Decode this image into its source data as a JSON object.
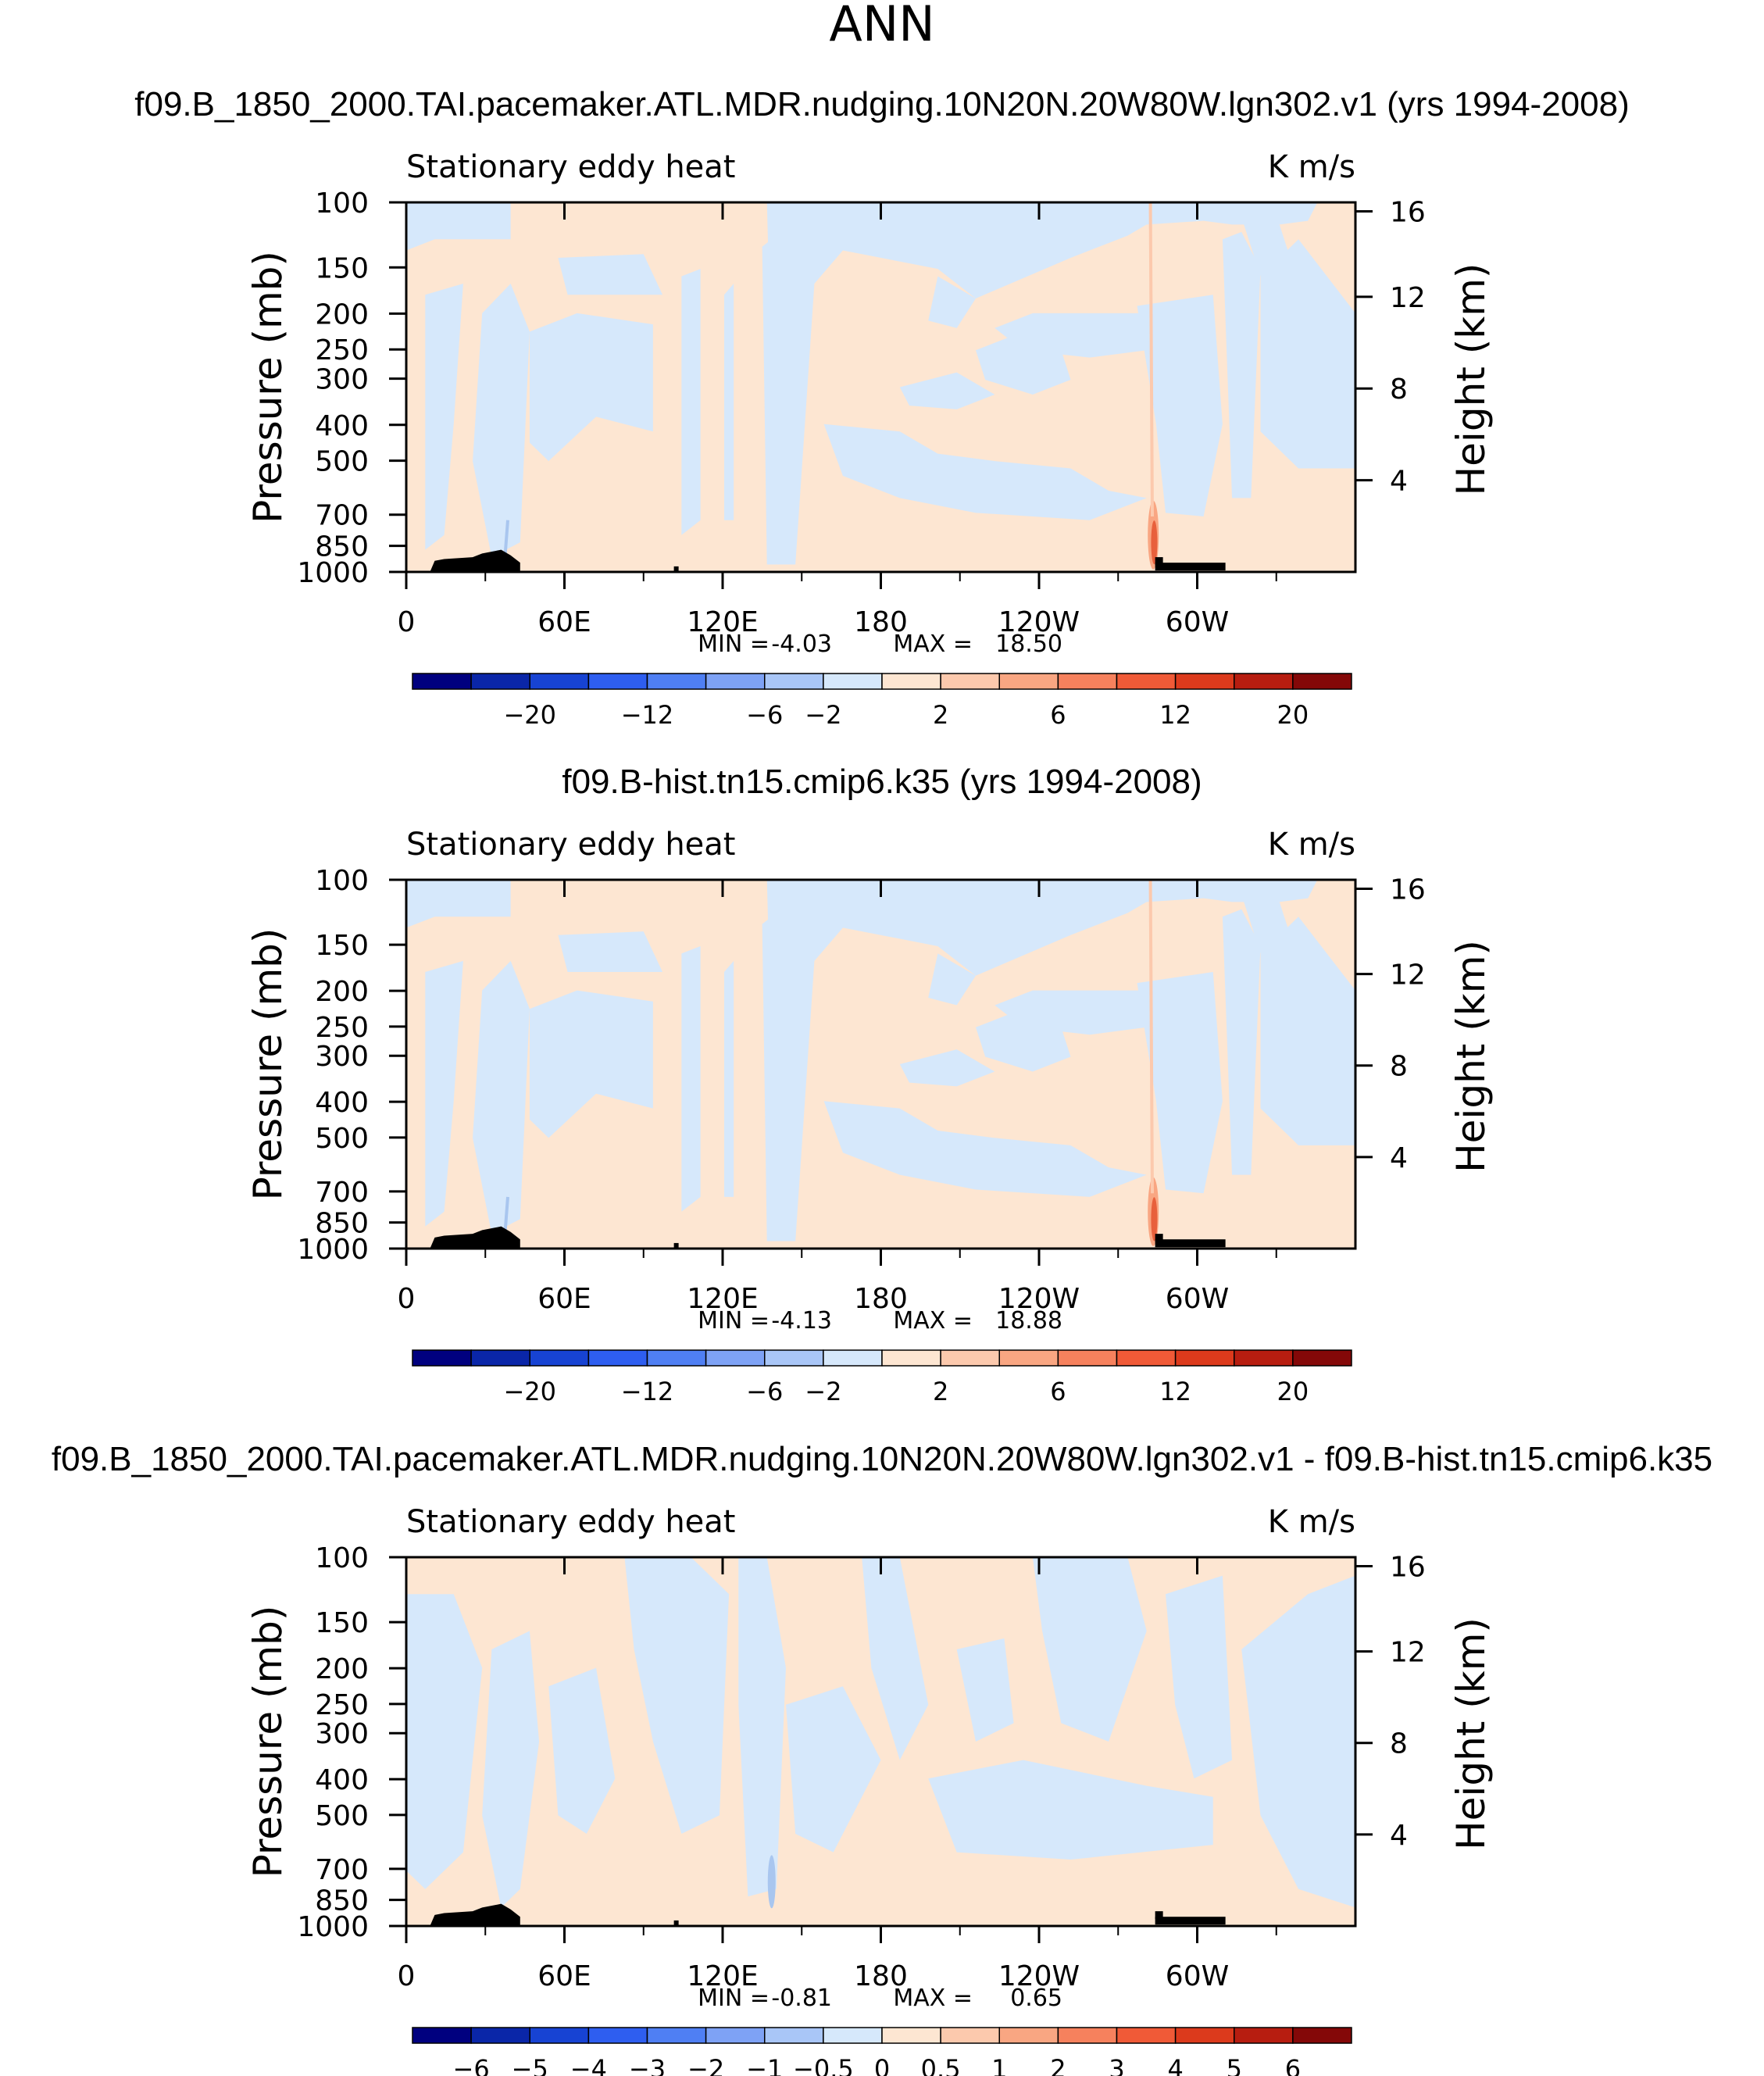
{
  "figure_title": "ANN",
  "colors": {
    "axis": "#000000",
    "topography": "#000000",
    "blue_field": "#d6e8fb",
    "tan_field": "#fde6d2",
    "strong_positive": "#e8603c",
    "contour_minor": "#a9c6ef"
  },
  "chart_data": [
    {
      "type": "heatmap",
      "title": "f09.B_1850_2000.TAI.pacemaker.ATL.MDR.nudging.10N20N.20W80W.lgn302.v1 (yrs 1994-2008)",
      "left_label": "Stationary eddy heat",
      "right_label": "K m/s",
      "xlabel": "",
      "ylabel": "Pressure (mb)",
      "y2label": "Height (km)",
      "x_ticks": [
        "0",
        "60E",
        "120E",
        "180",
        "120W",
        "60W"
      ],
      "x_tick_values": [
        0,
        60,
        120,
        180,
        240,
        300
      ],
      "xlim": [
        0,
        360
      ],
      "y_ticks": [
        100,
        150,
        200,
        250,
        300,
        400,
        500,
        700,
        850,
        1000
      ],
      "ylim": [
        1000,
        100
      ],
      "y2_ticks": [
        4,
        8,
        12,
        16
      ],
      "min_label": "MIN =",
      "min_value": "-4.03",
      "max_label": "MAX =",
      "max_value": "18.50",
      "colorbar_labels": [
        "−20",
        "−12",
        "−6",
        "−2",
        "2",
        "6",
        "12",
        "20"
      ],
      "colorbar_colors": [
        "#00007f",
        "#0a26a8",
        "#1743d3",
        "#2e5ef0",
        "#4f7ff3",
        "#7ea2f5",
        "#a9c6f7",
        "#d6e8fb",
        "#fde6d2",
        "#fcc9ad",
        "#f9a682",
        "#f6815d",
        "#f05a37",
        "#dc3a1c",
        "#b71d10",
        "#840808"
      ]
    },
    {
      "type": "heatmap",
      "title": "f09.B-hist.tn15.cmip6.k35 (yrs 1994-2008)",
      "left_label": "Stationary eddy heat",
      "right_label": "K m/s",
      "xlabel": "",
      "ylabel": "Pressure (mb)",
      "y2label": "Height (km)",
      "x_ticks": [
        "0",
        "60E",
        "120E",
        "180",
        "120W",
        "60W"
      ],
      "x_tick_values": [
        0,
        60,
        120,
        180,
        240,
        300
      ],
      "xlim": [
        0,
        360
      ],
      "y_ticks": [
        100,
        150,
        200,
        250,
        300,
        400,
        500,
        700,
        850,
        1000
      ],
      "ylim": [
        1000,
        100
      ],
      "y2_ticks": [
        4,
        8,
        12,
        16
      ],
      "min_label": "MIN =",
      "min_value": "-4.13",
      "max_label": "MAX =",
      "max_value": "18.88",
      "colorbar_labels": [
        "−20",
        "−12",
        "−6",
        "−2",
        "2",
        "6",
        "12",
        "20"
      ],
      "colorbar_colors": [
        "#00007f",
        "#0a26a8",
        "#1743d3",
        "#2e5ef0",
        "#4f7ff3",
        "#7ea2f5",
        "#a9c6f7",
        "#d6e8fb",
        "#fde6d2",
        "#fcc9ad",
        "#f9a682",
        "#f6815d",
        "#f05a37",
        "#dc3a1c",
        "#b71d10",
        "#840808"
      ]
    },
    {
      "type": "heatmap",
      "title": "f09.B_1850_2000.TAI.pacemaker.ATL.MDR.nudging.10N20N.20W80W.lgn302.v1 - f09.B-hist.tn15.cmip6.k35",
      "left_label": "Stationary eddy heat",
      "right_label": "K m/s",
      "xlabel": "",
      "ylabel": "Pressure (mb)",
      "y2label": "Height (km)",
      "x_ticks": [
        "0",
        "60E",
        "120E",
        "180",
        "120W",
        "60W"
      ],
      "x_tick_values": [
        0,
        60,
        120,
        180,
        240,
        300
      ],
      "xlim": [
        0,
        360
      ],
      "y_ticks": [
        100,
        150,
        200,
        250,
        300,
        400,
        500,
        700,
        850,
        1000
      ],
      "ylim": [
        1000,
        100
      ],
      "y2_ticks": [
        4,
        8,
        12,
        16
      ],
      "min_label": "MIN =",
      "min_value": "-0.81",
      "max_label": "MAX =",
      "max_value": "0.65",
      "colorbar_labels": [
        "−6",
        "−5",
        "−4",
        "−3",
        "−2",
        "−1",
        "−0.5",
        "0",
        "0.5",
        "1",
        "2",
        "3",
        "4",
        "5",
        "6"
      ],
      "colorbar_colors": [
        "#00007f",
        "#0a26a8",
        "#1743d3",
        "#2e5ef0",
        "#4f7ff3",
        "#7ea2f5",
        "#a9c6f7",
        "#d6e8fb",
        "#fde6d2",
        "#fcc9ad",
        "#f9a682",
        "#f6815d",
        "#f05a37",
        "#dc3a1c",
        "#b71d10",
        "#840808"
      ]
    }
  ]
}
